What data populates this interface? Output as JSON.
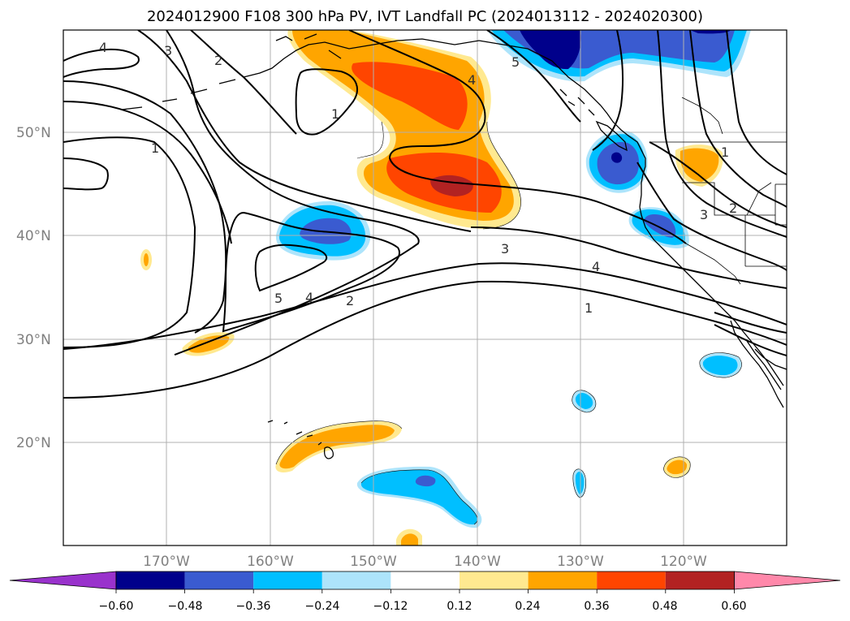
{
  "title": "2024012900 F108 300 hPa PV, IVT Landfall PC (2024013112 - 2024020300)",
  "map": {
    "lat_labels": [
      "50°N",
      "40°N",
      "30°N",
      "20°N"
    ],
    "lon_labels": [
      "170°W",
      "160°W",
      "150°W",
      "140°W",
      "130°W",
      "120°W"
    ],
    "contour_labels": [
      "4",
      "3",
      "2",
      "1",
      "1",
      "5",
      "4",
      "2",
      "3",
      "4",
      "1",
      "5",
      "4",
      "3",
      "2",
      "1"
    ]
  },
  "colorbar": {
    "ticks": [
      "−0.60",
      "−0.48",
      "−0.36",
      "−0.24",
      "−0.12",
      "0.12",
      "0.24",
      "0.36",
      "0.48",
      "0.60"
    ],
    "colors": [
      "#9932cc",
      "#00008b",
      "#3a5bd0",
      "#00bfff",
      "#ade4fb",
      "#ffffff",
      "#ffe990",
      "#ffa500",
      "#ff4500",
      "#b22222",
      "#ff88aa"
    ]
  }
}
